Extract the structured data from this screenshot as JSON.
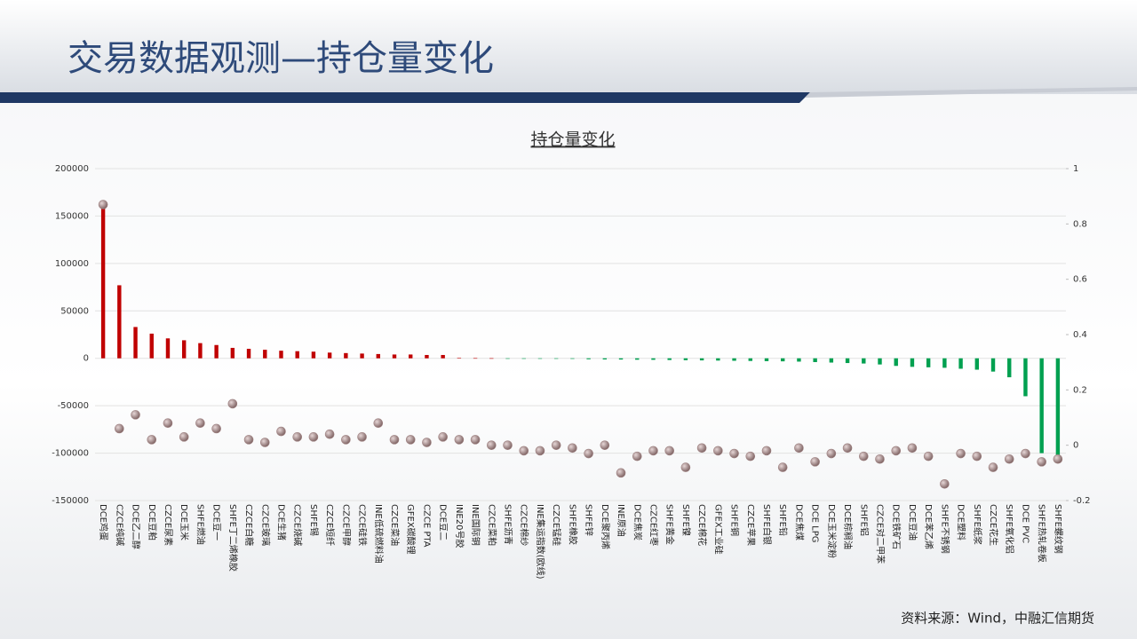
{
  "slide_title": "交易数据观测—持仓量变化",
  "source": "资料来源：Wind，中融汇信期货",
  "chart_data": {
    "type": "combo",
    "title": "持仓量变化",
    "categories": [
      "DCE鸡蛋",
      "CZCE纯碱",
      "DCE乙二醇",
      "DCE豆粕",
      "CZCE尿素",
      "DCE玉米",
      "SHFE燃油",
      "DCE豆一",
      "SHFE丁二烯橡胶",
      "CZCE白糖",
      "CZCE玻璃",
      "DCE生猪",
      "CZCE烧碱",
      "SHFE锡",
      "CZCE短纤",
      "CZCE甲醇",
      "CZCE硅铁",
      "INE低硫燃料油",
      "CZCE菜油",
      "GFEX碳酸锂",
      "CZCE PTA",
      "DCE豆二",
      "INE20号胶",
      "INE国际铜",
      "CZCE菜粕",
      "SHFE沥青",
      "CZCE棉纱",
      "INE集运指数(欧线)",
      "CZCE锰硅",
      "SHFE橡胶",
      "SHFE锌",
      "DCE聚丙烯",
      "INE原油",
      "DCE焦炭",
      "CZCE红枣",
      "SHFE黄金",
      "SHFE镍",
      "CZCE棉花",
      "GFEX工业硅",
      "SHFE铜",
      "CZCE苹果",
      "SHFE白银",
      "SHFE铅",
      "DCE焦煤",
      "DCE LPG",
      "DCE玉米淀粉",
      "DCE棕榈油",
      "SHFE铝",
      "CZCE对二甲苯",
      "DCE铁矿石",
      "DCE豆油",
      "DCE苯乙烯",
      "SHFE不锈钢",
      "DCE塑料",
      "SHFE纸浆",
      "CZCE花生",
      "SHFE氧化铝",
      "DCE PVC",
      "SHFE热轧卷板",
      "SHFE螺纹钢"
    ],
    "series": [
      {
        "type": "bar",
        "positive_color": "#c00000",
        "negative_color": "#00a050",
        "values": [
          162000,
          77000,
          33000,
          26000,
          21000,
          19000,
          16000,
          14000,
          11000,
          10000,
          9000,
          8000,
          7500,
          7000,
          6000,
          5500,
          5000,
          4500,
          4000,
          4000,
          3500,
          3500,
          300,
          200,
          100,
          -100,
          -200,
          -300,
          -400,
          -600,
          -1000,
          -1200,
          -1300,
          -1500,
          -1600,
          -1800,
          -2000,
          -2200,
          -2400,
          -2600,
          -2800,
          -3000,
          -3200,
          -3500,
          -4000,
          -4500,
          -5000,
          -5500,
          -6500,
          -8000,
          -9000,
          -9500,
          -10000,
          -11000,
          -12000,
          -14000,
          -20000,
          -40000,
          -100000,
          -105000
        ]
      },
      {
        "type": "scatter",
        "axis": "y2",
        "color": "#a08484",
        "values": [
          0.87,
          0.06,
          0.11,
          0.02,
          0.08,
          0.03,
          0.08,
          0.06,
          0.15,
          0.02,
          0.01,
          0.05,
          0.03,
          0.03,
          0.04,
          0.02,
          0.03,
          0.08,
          0.02,
          0.02,
          0.01,
          0.03,
          0.02,
          0.02,
          0,
          0,
          -0.02,
          -0.02,
          0,
          -0.01,
          -0.03,
          0,
          -0.1,
          -0.04,
          -0.02,
          -0.02,
          -0.08,
          -0.01,
          -0.02,
          -0.03,
          -0.04,
          -0.02,
          -0.08,
          -0.01,
          -0.06,
          -0.03,
          -0.01,
          -0.04,
          -0.05,
          -0.02,
          -0.01,
          -0.04,
          -0.14,
          -0.03,
          -0.04,
          -0.08,
          -0.05,
          -0.03,
          -0.06,
          -0.05
        ]
      }
    ],
    "ylim": [
      -150000,
      200000
    ],
    "yticks": [
      -150000,
      -100000,
      -50000,
      0,
      50000,
      100000,
      150000,
      200000
    ],
    "y2lim": [
      -0.2,
      1
    ],
    "y2ticks": [
      -0.2,
      0,
      0.2,
      0.4,
      0.6,
      0.8,
      1
    ],
    "grid": true
  }
}
